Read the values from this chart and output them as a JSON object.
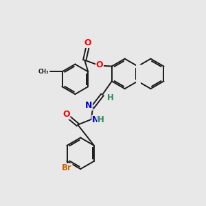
{
  "background_color": "#e8e8e8",
  "bond_color": "#1a1a1a",
  "atom_colors": {
    "O": "#ff0000",
    "N": "#0000cd",
    "Br": "#cc6600",
    "H": "#2e8b57",
    "C": "#1a1a1a"
  },
  "figsize": [
    3.0,
    3.0
  ],
  "dpi": 100
}
